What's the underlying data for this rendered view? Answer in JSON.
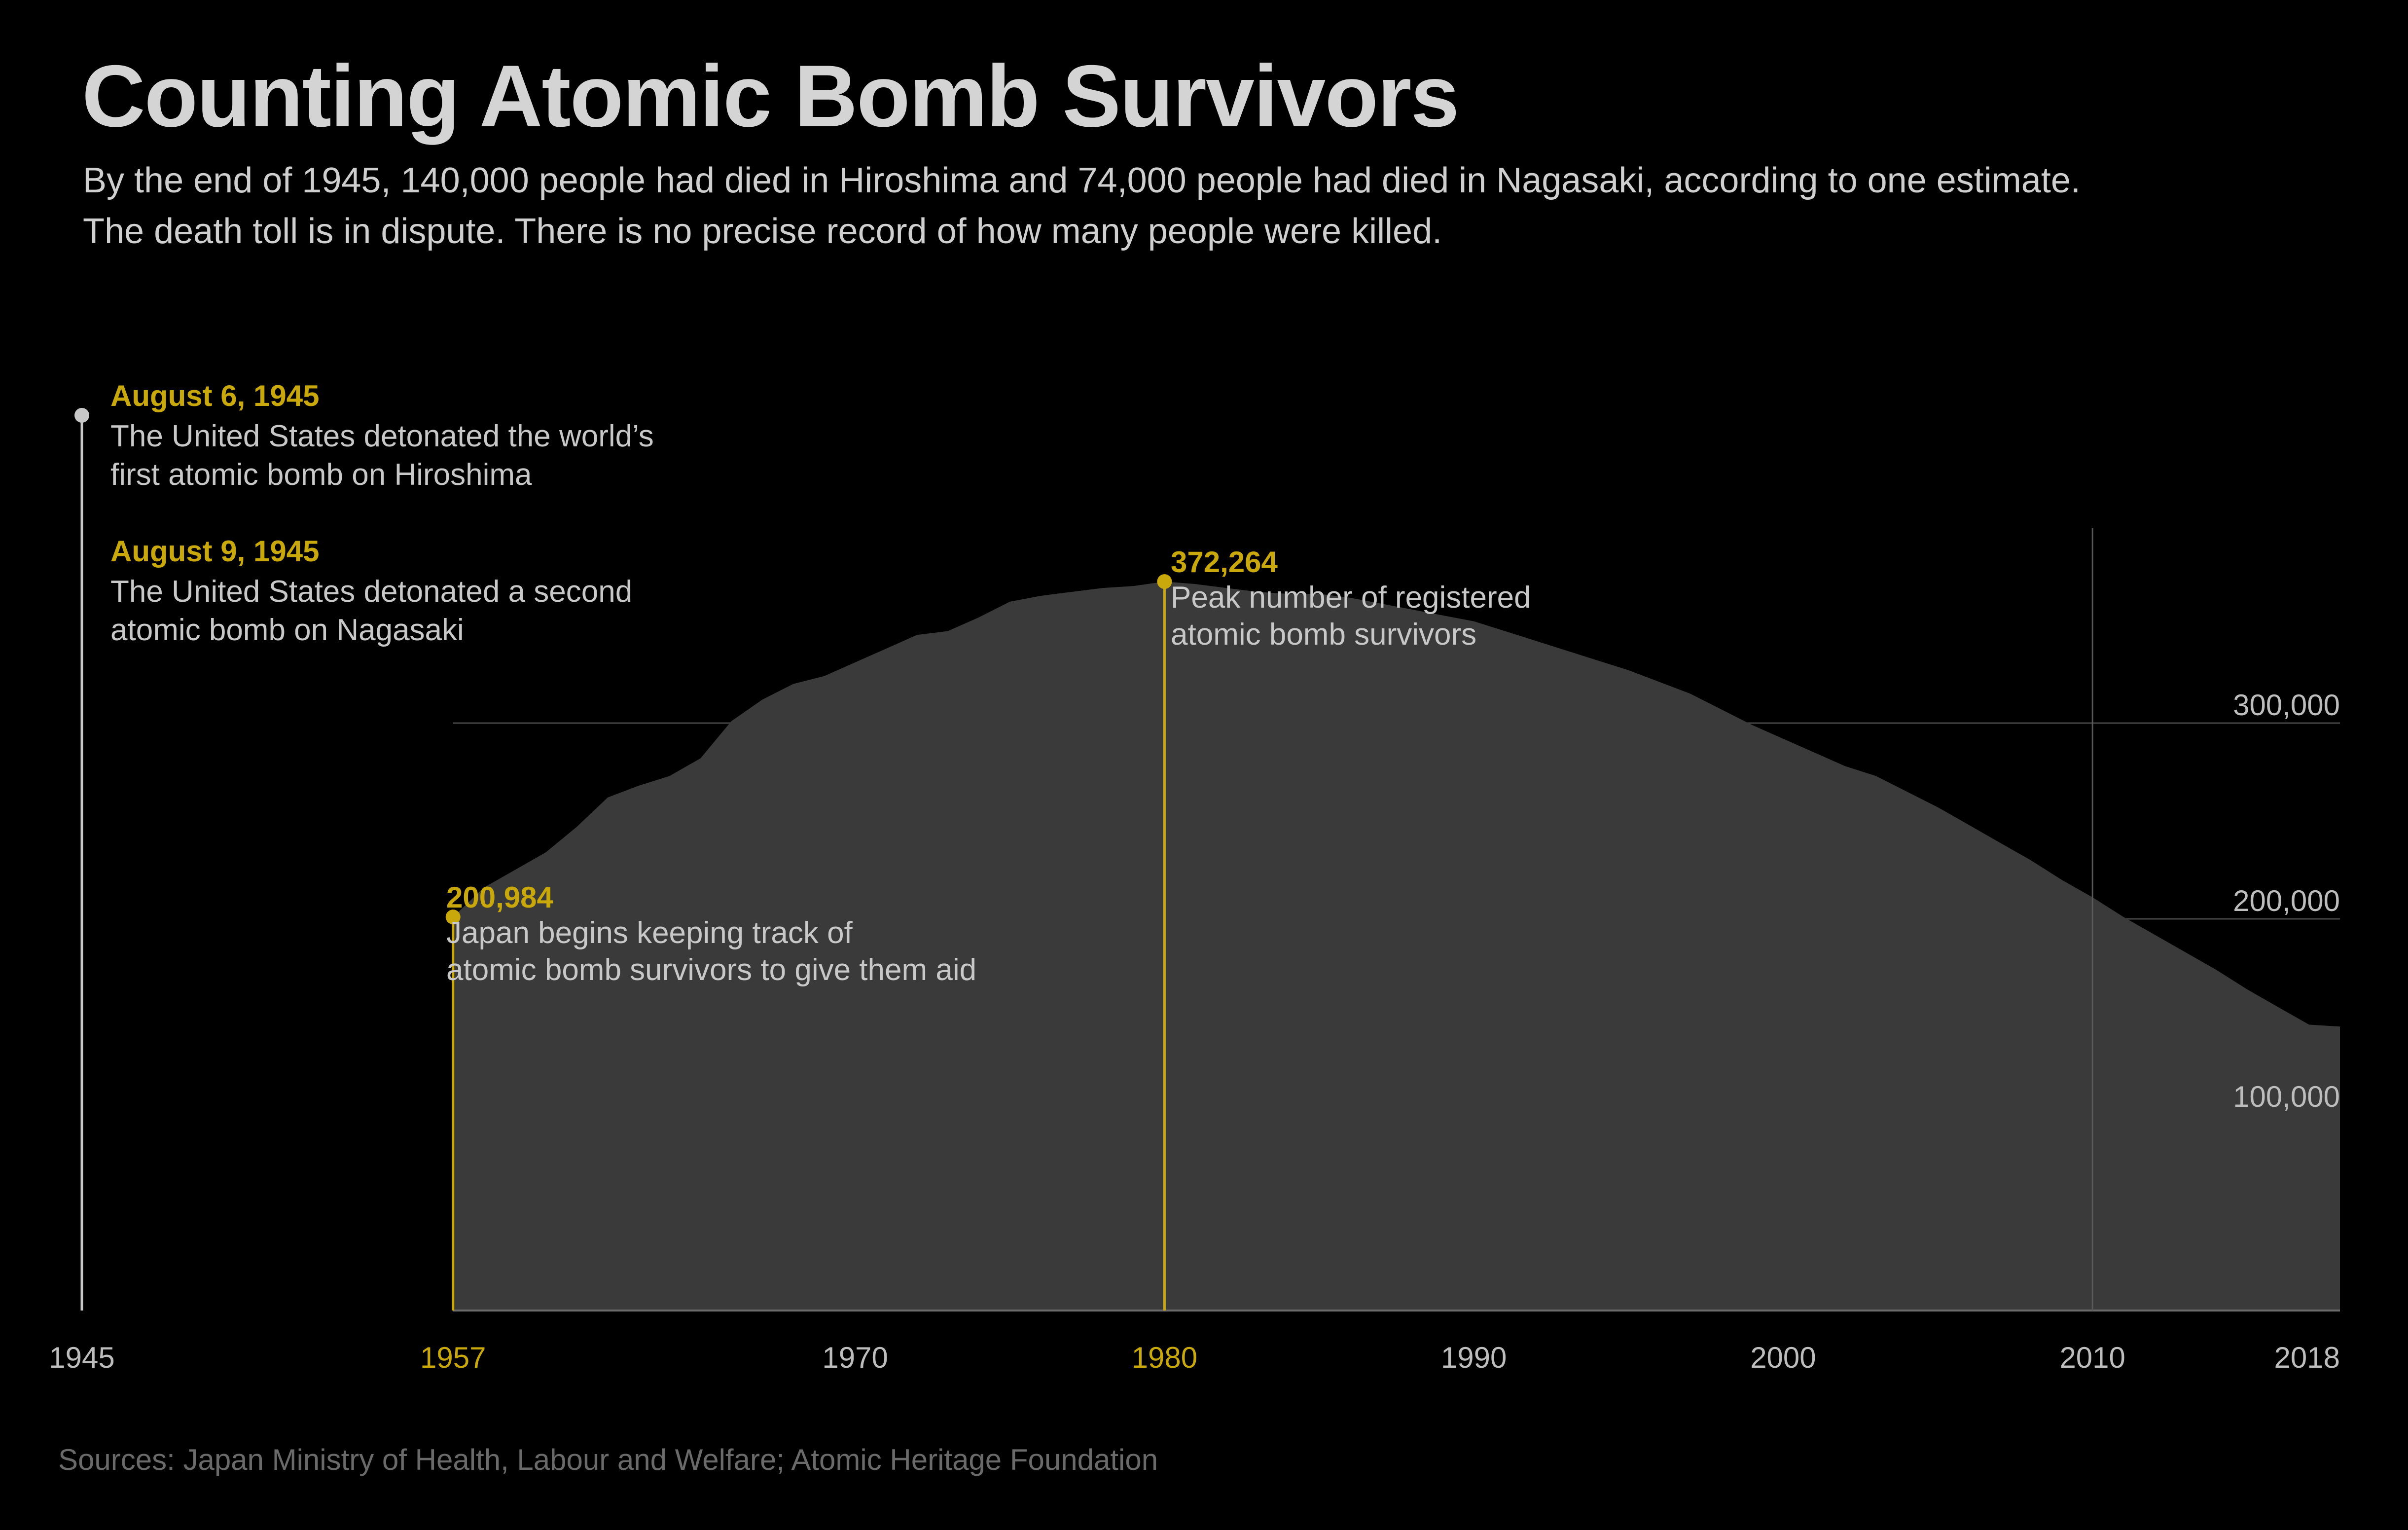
{
  "header": {
    "title": "Counting Atomic Bomb Survivors",
    "subtitle_line1": "By the end of 1945, 140,000 people had died in Hiroshima and 74,000 people had died in Nagasaki, according to one estimate.",
    "subtitle_line2": "The death toll is in dispute. There is no precise record of how many people were killed."
  },
  "footer": {
    "source": "Sources: Japan Ministry of Health, Labour and Welfare; Atomic Heritage Foundation"
  },
  "colors": {
    "background": "#000000",
    "area": "#3a3a3a",
    "accent": "#c9a80c",
    "text": "#c8c8c8",
    "grid": "#555555"
  },
  "chart_data": {
    "type": "area",
    "xlabel": "",
    "ylabel": "",
    "x_range": [
      1945,
      2018
    ],
    "ylim": [
      0,
      400000
    ],
    "grid": "horizontal",
    "x_ticks": [
      {
        "value": 1945,
        "label": "1945",
        "highlight": false
      },
      {
        "value": 1957,
        "label": "1957",
        "highlight": true
      },
      {
        "value": 1970,
        "label": "1970",
        "highlight": false
      },
      {
        "value": 1980,
        "label": "1980",
        "highlight": true
      },
      {
        "value": 1990,
        "label": "1990",
        "highlight": false
      },
      {
        "value": 2000,
        "label": "2000",
        "highlight": false
      },
      {
        "value": 2010,
        "label": "2010",
        "highlight": false
      },
      {
        "value": 2018,
        "label": "2018",
        "highlight": false
      }
    ],
    "y_ticks": [
      {
        "value": 100000,
        "label": "100,000"
      },
      {
        "value": 200000,
        "label": "200,000"
      },
      {
        "value": 300000,
        "label": "300,000"
      }
    ],
    "x": [
      1957,
      1958,
      1960,
      1961,
      1962,
      1963,
      1964,
      1965,
      1966,
      1967,
      1968,
      1969,
      1970,
      1971,
      1972,
      1973,
      1974,
      1975,
      1976,
      1977,
      1978,
      1979,
      1980,
      1981,
      1982,
      1983,
      1984,
      1985,
      1986,
      1987,
      1988,
      1989,
      1990,
      1991,
      1992,
      1993,
      1994,
      1995,
      1996,
      1997,
      1998,
      1999,
      2000,
      2001,
      2002,
      2003,
      2004,
      2005,
      2006,
      2007,
      2008,
      2009,
      2010,
      2011,
      2012,
      2013,
      2014,
      2015,
      2016,
      2017,
      2018
    ],
    "values": [
      200984,
      216000,
      234000,
      247000,
      262000,
      268000,
      273000,
      282000,
      301000,
      312000,
      320000,
      324000,
      331000,
      338000,
      345000,
      347000,
      354000,
      362000,
      365000,
      367000,
      369000,
      370000,
      372264,
      371000,
      369000,
      367000,
      366000,
      366000,
      364000,
      361000,
      358000,
      355000,
      352000,
      347000,
      342000,
      337000,
      332000,
      327000,
      321000,
      315000,
      307000,
      299000,
      292000,
      285000,
      278000,
      273000,
      265000,
      257000,
      248000,
      239000,
      230000,
      220000,
      211000,
      201000,
      192000,
      183000,
      174000,
      164000,
      155000,
      146000,
      145000
    ],
    "annotations": [
      {
        "id": "hiroshima",
        "x": 1945,
        "date": "August 6, 1945",
        "line1": "The United States detonated the world’s",
        "line2": "first atomic bomb on Hiroshima"
      },
      {
        "id": "nagasaki",
        "x": 1945,
        "date": "August 9, 1945",
        "line1": "The United States detonated a second",
        "line2": "atomic bomb on Nagasaki"
      },
      {
        "id": "start",
        "x": 1957,
        "y": 200984,
        "value_label": "200,984",
        "line1": "Japan begins keeping track of",
        "line2": "atomic bomb survivors to give them aid"
      },
      {
        "id": "peak",
        "x": 1980,
        "y": 372264,
        "value_label": "372,264",
        "line1": "Peak number of registered",
        "line2": "atomic bomb survivors"
      }
    ]
  }
}
